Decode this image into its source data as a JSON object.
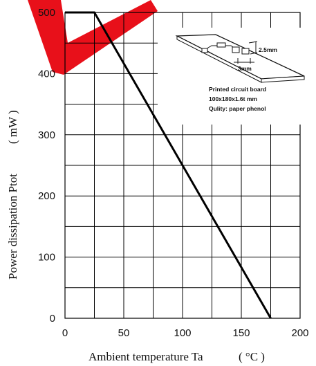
{
  "chart_data": {
    "type": "line",
    "title": "",
    "xlabel": "Ambient temperature Ta",
    "xlabel_unit": "( °C )",
    "ylabel": "Power dissipation Ptot",
    "ylabel_unit": "( mW )",
    "xlim": [
      0,
      200
    ],
    "ylim": [
      0,
      500
    ],
    "xticks": [
      "0",
      "50",
      "100",
      "150",
      "200"
    ],
    "yticks": [
      "0",
      "100",
      "200",
      "300",
      "400",
      "500"
    ],
    "grid": true,
    "series": [
      {
        "x": [
          0,
          25,
          175
        ],
        "y": [
          500,
          500,
          0
        ]
      }
    ],
    "inset": {
      "dim_width": "2.5mm",
      "dim_length": "3mm",
      "lines": [
        "Printed circuit board",
        "100x180x1.6t mm",
        "Qulity: paper phenol"
      ]
    }
  },
  "colors": {
    "line": "#000000",
    "grid": "#000000",
    "stamp": "#e8101a"
  }
}
